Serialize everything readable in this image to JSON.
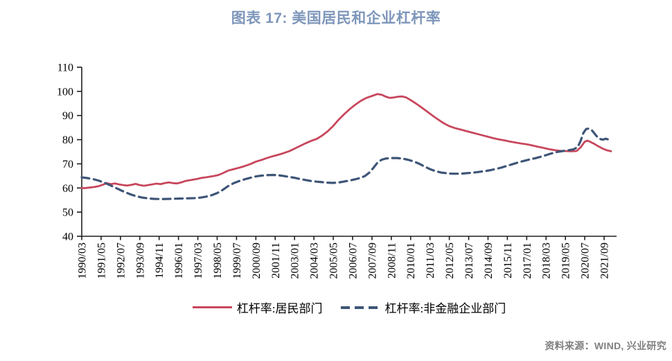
{
  "title": "图表 17: 美国居民和企业杠杆率",
  "source": "资料来源：WIND, 兴业研究",
  "legend": {
    "items": [
      {
        "label": "杠杆率:居民部门",
        "color": "#C8475C",
        "style": "solid"
      },
      {
        "label": "杠杆率:非金融企业部门",
        "color": "#3E5577",
        "style": "dashed"
      }
    ]
  },
  "colors": {
    "household_line": "#C8475C",
    "corporate_line": "#3E5577",
    "title_text": "#7E96BA",
    "source_text": "#7F7F7F",
    "axis": "#1F1F1F"
  },
  "chart_data": {
    "type": "line",
    "title": "图表 17: 美国居民和企业杠杆率",
    "xlabel": "",
    "ylabel": "",
    "ylim": [
      40,
      110
    ],
    "y_ticks": [
      110,
      100,
      90,
      80,
      70,
      60,
      50,
      40
    ],
    "grid": false,
    "legend_position": "bottom",
    "x_tick_interval_months": 14,
    "x_tick_labels": [
      "1990/03",
      "1991/05",
      "1992/07",
      "1993/09",
      "1994/11",
      "1996/01",
      "1997/03",
      "1998/05",
      "1999/07",
      "2000/09",
      "2001/11",
      "2003/01",
      "2004/03",
      "2005/05",
      "2006/07",
      "2007/09",
      "2008/11",
      "2010/01",
      "2011/03",
      "2012/05",
      "2013/07",
      "2014/09",
      "2015/11",
      "2017/01",
      "2018/03",
      "2019/05",
      "2020/07",
      "2021/09"
    ],
    "x_unit": "months since 1990/03",
    "series": [
      {
        "name": "杠杆率:居民部门",
        "color": "#C8475C",
        "line_style": "solid",
        "points": [
          [
            0,
            59.9
          ],
          [
            3,
            60.0
          ],
          [
            6,
            60.2
          ],
          [
            9,
            60.4
          ],
          [
            12,
            60.7
          ],
          [
            15,
            61.3
          ],
          [
            18,
            62.0
          ],
          [
            21,
            61.6
          ],
          [
            24,
            61.9
          ],
          [
            27,
            61.5
          ],
          [
            30,
            61.2
          ],
          [
            33,
            61.0
          ],
          [
            36,
            61.3
          ],
          [
            39,
            61.7
          ],
          [
            42,
            61.2
          ],
          [
            45,
            60.9
          ],
          [
            48,
            61.2
          ],
          [
            51,
            61.5
          ],
          [
            54,
            61.8
          ],
          [
            57,
            61.6
          ],
          [
            60,
            62.0
          ],
          [
            63,
            62.3
          ],
          [
            66,
            62.0
          ],
          [
            69,
            61.9
          ],
          [
            72,
            62.3
          ],
          [
            75,
            62.9
          ],
          [
            78,
            63.2
          ],
          [
            81,
            63.5
          ],
          [
            84,
            63.8
          ],
          [
            87,
            64.2
          ],
          [
            90,
            64.4
          ],
          [
            93,
            64.7
          ],
          [
            96,
            65.0
          ],
          [
            99,
            65.4
          ],
          [
            102,
            66.1
          ],
          [
            106,
            67.2
          ],
          [
            110,
            67.8
          ],
          [
            114,
            68.4
          ],
          [
            118,
            69.1
          ],
          [
            122,
            69.9
          ],
          [
            126,
            70.9
          ],
          [
            130,
            71.6
          ],
          [
            134,
            72.4
          ],
          [
            138,
            73.1
          ],
          [
            142,
            73.7
          ],
          [
            146,
            74.4
          ],
          [
            150,
            75.2
          ],
          [
            154,
            76.3
          ],
          [
            158,
            77.4
          ],
          [
            162,
            78.5
          ],
          [
            166,
            79.5
          ],
          [
            170,
            80.3
          ],
          [
            174,
            81.7
          ],
          [
            178,
            83.5
          ],
          [
            182,
            85.7
          ],
          [
            186,
            88.3
          ],
          [
            190,
            90.6
          ],
          [
            194,
            92.7
          ],
          [
            198,
            94.5
          ],
          [
            202,
            96.1
          ],
          [
            206,
            97.3
          ],
          [
            210,
            98.1
          ],
          [
            214,
            98.9
          ],
          [
            217,
            98.6
          ],
          [
            220,
            97.8
          ],
          [
            223,
            97.3
          ],
          [
            226,
            97.5
          ],
          [
            229,
            97.8
          ],
          [
            232,
            97.9
          ],
          [
            235,
            97.4
          ],
          [
            238,
            96.4
          ],
          [
            242,
            94.9
          ],
          [
            246,
            93.3
          ],
          [
            250,
            91.6
          ],
          [
            254,
            89.9
          ],
          [
            258,
            88.3
          ],
          [
            262,
            86.8
          ],
          [
            266,
            85.6
          ],
          [
            270,
            84.8
          ],
          [
            274,
            84.2
          ],
          [
            278,
            83.6
          ],
          [
            282,
            83.0
          ],
          [
            286,
            82.4
          ],
          [
            290,
            81.8
          ],
          [
            294,
            81.2
          ],
          [
            298,
            80.6
          ],
          [
            302,
            80.1
          ],
          [
            306,
            79.7
          ],
          [
            310,
            79.2
          ],
          [
            314,
            78.8
          ],
          [
            318,
            78.4
          ],
          [
            322,
            78.1
          ],
          [
            326,
            77.6
          ],
          [
            330,
            77.1
          ],
          [
            334,
            76.6
          ],
          [
            338,
            76.1
          ],
          [
            342,
            75.7
          ],
          [
            346,
            75.4
          ],
          [
            350,
            75.3
          ],
          [
            354,
            75.2
          ],
          [
            358,
            75.3
          ],
          [
            361,
            76.8
          ],
          [
            364,
            79.2
          ],
          [
            366,
            79.6
          ],
          [
            368,
            79.1
          ],
          [
            371,
            78.2
          ],
          [
            374,
            77.2
          ],
          [
            377,
            76.3
          ],
          [
            380,
            75.6
          ],
          [
            383,
            75.2
          ]
        ]
      },
      {
        "name": "杠杆率:非金融企业部门",
        "color": "#3E5577",
        "line_style": "dashed",
        "points": [
          [
            0,
            64.4
          ],
          [
            4,
            64.1
          ],
          [
            8,
            63.7
          ],
          [
            12,
            63.1
          ],
          [
            16,
            62.3
          ],
          [
            20,
            61.3
          ],
          [
            24,
            60.2
          ],
          [
            28,
            59.1
          ],
          [
            32,
            58.1
          ],
          [
            36,
            57.2
          ],
          [
            40,
            56.5
          ],
          [
            44,
            56.0
          ],
          [
            48,
            55.7
          ],
          [
            52,
            55.5
          ],
          [
            58,
            55.4
          ],
          [
            64,
            55.5
          ],
          [
            70,
            55.6
          ],
          [
            76,
            55.7
          ],
          [
            82,
            55.8
          ],
          [
            86,
            56.0
          ],
          [
            90,
            56.4
          ],
          [
            94,
            57.0
          ],
          [
            98,
            57.9
          ],
          [
            102,
            59.2
          ],
          [
            106,
            60.8
          ],
          [
            110,
            62.0
          ],
          [
            114,
            62.9
          ],
          [
            118,
            63.6
          ],
          [
            122,
            64.2
          ],
          [
            126,
            64.8
          ],
          [
            130,
            65.1
          ],
          [
            134,
            65.3
          ],
          [
            138,
            65.4
          ],
          [
            142,
            65.3
          ],
          [
            146,
            65.0
          ],
          [
            150,
            64.6
          ],
          [
            154,
            64.2
          ],
          [
            158,
            63.7
          ],
          [
            162,
            63.3
          ],
          [
            166,
            62.9
          ],
          [
            170,
            62.6
          ],
          [
            174,
            62.4
          ],
          [
            178,
            62.2
          ],
          [
            182,
            62.1
          ],
          [
            186,
            62.3
          ],
          [
            190,
            62.7
          ],
          [
            194,
            63.1
          ],
          [
            198,
            63.6
          ],
          [
            202,
            64.2
          ],
          [
            205,
            65.0
          ],
          [
            208,
            66.3
          ],
          [
            211,
            68.3
          ],
          [
            214,
            70.5
          ],
          [
            217,
            71.7
          ],
          [
            220,
            72.2
          ],
          [
            224,
            72.4
          ],
          [
            228,
            72.4
          ],
          [
            232,
            72.2
          ],
          [
            236,
            71.7
          ],
          [
            240,
            71.0
          ],
          [
            244,
            70.1
          ],
          [
            248,
            68.9
          ],
          [
            252,
            67.8
          ],
          [
            256,
            67.0
          ],
          [
            260,
            66.4
          ],
          [
            264,
            66.1
          ],
          [
            268,
            65.9
          ],
          [
            272,
            65.9
          ],
          [
            276,
            66.0
          ],
          [
            280,
            66.2
          ],
          [
            284,
            66.4
          ],
          [
            288,
            66.7
          ],
          [
            292,
            67.0
          ],
          [
            296,
            67.4
          ],
          [
            300,
            67.9
          ],
          [
            304,
            68.5
          ],
          [
            308,
            69.2
          ],
          [
            312,
            69.9
          ],
          [
            316,
            70.6
          ],
          [
            320,
            71.2
          ],
          [
            324,
            71.8
          ],
          [
            328,
            72.3
          ],
          [
            332,
            72.9
          ],
          [
            336,
            73.6
          ],
          [
            340,
            74.3
          ],
          [
            344,
            74.9
          ],
          [
            348,
            75.3
          ],
          [
            352,
            75.6
          ],
          [
            356,
            76.0
          ],
          [
            359,
            77.0
          ],
          [
            361,
            79.5
          ],
          [
            363,
            82.8
          ],
          [
            365,
            84.4
          ],
          [
            367,
            84.6
          ],
          [
            369,
            84.0
          ],
          [
            371,
            82.6
          ],
          [
            373,
            81.2
          ],
          [
            375,
            80.3
          ],
          [
            377,
            80.0
          ],
          [
            379,
            80.4
          ],
          [
            381,
            80.1
          ],
          [
            383,
            79.8
          ]
        ]
      }
    ]
  }
}
